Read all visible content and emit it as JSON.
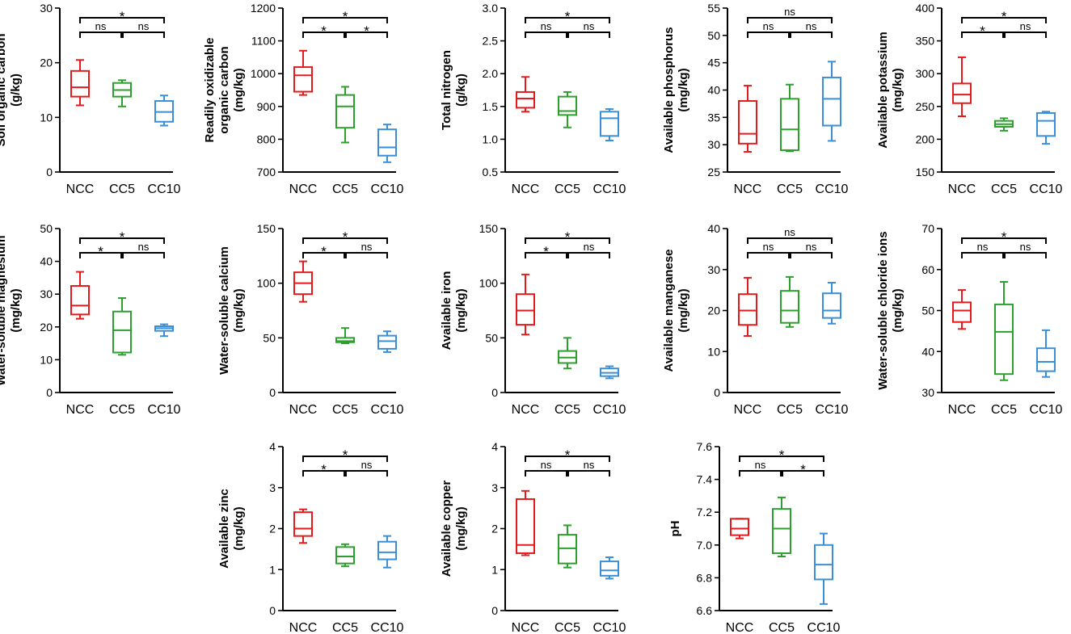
{
  "figure_title": "",
  "colors": {
    "NCC": "#e41a1c",
    "CC5": "#2ca02c",
    "CC10": "#3b8fd6",
    "axis": "#000000"
  },
  "chart_data": [
    {
      "id": "soc",
      "type": "box",
      "ylabel_lines": [
        "Soil organic carbon",
        "(g/kg)"
      ],
      "ylim": [
        0,
        30
      ],
      "yticks": [
        0,
        10,
        20,
        30
      ],
      "categories": [
        "NCC",
        "CC5",
        "CC10"
      ],
      "boxes": [
        {
          "min": 12.2,
          "q1": 13.8,
          "median": 15.5,
          "q3": 18.5,
          "max": 20.5
        },
        {
          "min": 12.0,
          "q1": 13.8,
          "median": 15.0,
          "q3": 16.3,
          "max": 16.8
        },
        {
          "min": 8.5,
          "q1": 9.2,
          "median": 11.0,
          "q3": 13.0,
          "max": 14.0
        }
      ],
      "significance": {
        "NCC_CC5": "ns",
        "CC5_CC10": "ns",
        "NCC_CC10": "*"
      }
    },
    {
      "id": "roc",
      "type": "box",
      "ylabel_lines": [
        "Readily oxidizable",
        "organic carbon",
        "(mg/kg)"
      ],
      "ylim": [
        700,
        1200
      ],
      "yticks": [
        700,
        800,
        900,
        1000,
        1100,
        1200
      ],
      "categories": [
        "NCC",
        "CC5",
        "CC10"
      ],
      "boxes": [
        {
          "min": 935,
          "q1": 945,
          "median": 995,
          "q3": 1020,
          "max": 1070
        },
        {
          "min": 790,
          "q1": 835,
          "median": 900,
          "q3": 935,
          "max": 960
        },
        {
          "min": 730,
          "q1": 750,
          "median": 775,
          "q3": 830,
          "max": 845
        }
      ],
      "significance": {
        "NCC_CC5": "*",
        "CC5_CC10": "*",
        "NCC_CC10": "*"
      }
    },
    {
      "id": "tn",
      "type": "box",
      "ylabel_lines": [
        "Total nitrogen",
        "(g/kg)"
      ],
      "ylim": [
        0.5,
        3.0
      ],
      "yticks": [
        "0.5",
        "1.0",
        "1.5",
        "2.0",
        "2.5",
        "3.0"
      ],
      "categories": [
        "NCC",
        "CC5",
        "CC10"
      ],
      "boxes": [
        {
          "min": 1.42,
          "q1": 1.48,
          "median": 1.62,
          "q3": 1.72,
          "max": 1.95
        },
        {
          "min": 1.18,
          "q1": 1.37,
          "median": 1.43,
          "q3": 1.65,
          "max": 1.72
        },
        {
          "min": 0.98,
          "q1": 1.05,
          "median": 1.32,
          "q3": 1.42,
          "max": 1.46
        }
      ],
      "significance": {
        "NCC_CC5": "ns",
        "CC5_CC10": "ns",
        "NCC_CC10": "*"
      }
    },
    {
      "id": "ap",
      "type": "box",
      "ylabel_lines": [
        "Available phosphorus",
        "(mg/kg)"
      ],
      "ylim": [
        25,
        55
      ],
      "yticks": [
        25,
        30,
        35,
        40,
        45,
        50,
        55
      ],
      "categories": [
        "NCC",
        "CC5",
        "CC10"
      ],
      "boxes": [
        {
          "min": 28.7,
          "q1": 30.2,
          "median": 32.0,
          "q3": 38.0,
          "max": 40.8
        },
        {
          "min": 28.8,
          "q1": 29.0,
          "median": 32.8,
          "q3": 38.4,
          "max": 41.0
        },
        {
          "min": 30.7,
          "q1": 33.5,
          "median": 38.4,
          "q3": 42.3,
          "max": 45.2
        }
      ],
      "significance": {
        "NCC_CC5": "ns",
        "CC5_CC10": "ns",
        "NCC_CC10": "ns"
      }
    },
    {
      "id": "ak",
      "type": "box",
      "ylabel_lines": [
        "Available potassium",
        "(mg/kg)"
      ],
      "ylim": [
        150,
        400
      ],
      "yticks": [
        150,
        200,
        250,
        300,
        350,
        400
      ],
      "categories": [
        "NCC",
        "CC5",
        "CC10"
      ],
      "boxes": [
        {
          "min": 235,
          "q1": 255,
          "median": 268,
          "q3": 285,
          "max": 325
        },
        {
          "min": 213,
          "q1": 219,
          "median": 223,
          "q3": 228,
          "max": 232
        },
        {
          "min": 193,
          "q1": 205,
          "median": 228,
          "q3": 240,
          "max": 242
        }
      ],
      "significance": {
        "NCC_CC5": "*",
        "CC5_CC10": "ns",
        "NCC_CC10": "*"
      }
    },
    {
      "id": "mg",
      "type": "box",
      "ylabel_lines": [
        "Water-soluble magnesium",
        "(mg/kg)"
      ],
      "ylim": [
        0,
        50
      ],
      "yticks": [
        0,
        10,
        20,
        30,
        40,
        50
      ],
      "categories": [
        "NCC",
        "CC5",
        "CC10"
      ],
      "boxes": [
        {
          "min": 22.5,
          "q1": 23.8,
          "median": 26.5,
          "q3": 32.5,
          "max": 36.8
        },
        {
          "min": 11.5,
          "q1": 12.2,
          "median": 19.0,
          "q3": 24.7,
          "max": 28.8
        },
        {
          "min": 17.2,
          "q1": 18.8,
          "median": 19.6,
          "q3": 20.2,
          "max": 20.8
        }
      ],
      "significance": {
        "NCC_CC5": "*",
        "CC5_CC10": "ns",
        "NCC_CC10": "*"
      }
    },
    {
      "id": "ca",
      "type": "box",
      "ylabel_lines": [
        "Water-soluble calcium",
        "(mg/kg)"
      ],
      "ylim": [
        0,
        150
      ],
      "yticks": [
        0,
        50,
        100,
        150
      ],
      "categories": [
        "NCC",
        "CC5",
        "CC10"
      ],
      "boxes": [
        {
          "min": 83,
          "q1": 90,
          "median": 100,
          "q3": 110,
          "max": 120
        },
        {
          "min": 45,
          "q1": 46,
          "median": 47,
          "q3": 50,
          "max": 59
        },
        {
          "min": 37,
          "q1": 40,
          "median": 47,
          "q3": 52,
          "max": 56
        }
      ],
      "significance": {
        "NCC_CC5": "*",
        "CC5_CC10": "ns",
        "NCC_CC10": "*"
      }
    },
    {
      "id": "fe",
      "type": "box",
      "ylabel_lines": [
        "Available iron",
        "(mg/kg)"
      ],
      "ylim": [
        0,
        150
      ],
      "yticks": [
        0,
        50,
        100,
        150
      ],
      "categories": [
        "NCC",
        "CC5",
        "CC10"
      ],
      "boxes": [
        {
          "min": 53,
          "q1": 62,
          "median": 75,
          "q3": 90,
          "max": 108
        },
        {
          "min": 22,
          "q1": 27,
          "median": 32,
          "q3": 38,
          "max": 50
        },
        {
          "min": 13,
          "q1": 15,
          "median": 18,
          "q3": 22,
          "max": 24
        }
      ],
      "significance": {
        "NCC_CC5": "*",
        "CC5_CC10": "ns",
        "NCC_CC10": "*"
      }
    },
    {
      "id": "mn",
      "type": "box",
      "ylabel_lines": [
        "Available manganese",
        "(mg/kg)"
      ],
      "ylim": [
        0,
        40
      ],
      "yticks": [
        0,
        10,
        20,
        30,
        40
      ],
      "categories": [
        "NCC",
        "CC5",
        "CC10"
      ],
      "boxes": [
        {
          "min": 13.8,
          "q1": 16.5,
          "median": 20.0,
          "q3": 24.0,
          "max": 28.0
        },
        {
          "min": 16.0,
          "q1": 17.0,
          "median": 20.0,
          "q3": 24.8,
          "max": 28.2
        },
        {
          "min": 16.8,
          "q1": 18.2,
          "median": 20.0,
          "q3": 24.2,
          "max": 26.8
        }
      ],
      "significance": {
        "NCC_CC5": "ns",
        "CC5_CC10": "ns",
        "NCC_CC10": "ns"
      }
    },
    {
      "id": "cl",
      "type": "box",
      "ylabel_lines": [
        "Water-soluble chloride ions",
        "(mg/kg)"
      ],
      "ylim": [
        30,
        70
      ],
      "yticks": [
        30,
        40,
        50,
        60,
        70
      ],
      "categories": [
        "NCC",
        "CC5",
        "CC10"
      ],
      "boxes": [
        {
          "min": 45.5,
          "q1": 47.2,
          "median": 50.0,
          "q3": 52.0,
          "max": 55.0
        },
        {
          "min": 33.0,
          "q1": 34.5,
          "median": 44.8,
          "q3": 51.5,
          "max": 57.0
        },
        {
          "min": 33.8,
          "q1": 35.2,
          "median": 37.5,
          "q3": 40.8,
          "max": 45.2
        }
      ],
      "significance": {
        "NCC_CC5": "ns",
        "CC5_CC10": "ns",
        "NCC_CC10": "*"
      }
    },
    {
      "id": "zn",
      "type": "box",
      "ylabel_lines": [
        "Available zinc",
        "(mg/kg)"
      ],
      "ylim": [
        0,
        4
      ],
      "yticks": [
        0,
        1,
        2,
        3,
        4
      ],
      "categories": [
        "NCC",
        "CC5",
        "CC10"
      ],
      "boxes": [
        {
          "min": 1.65,
          "q1": 1.82,
          "median": 2.0,
          "q3": 2.4,
          "max": 2.47
        },
        {
          "min": 1.08,
          "q1": 1.15,
          "median": 1.32,
          "q3": 1.55,
          "max": 1.62
        },
        {
          "min": 1.05,
          "q1": 1.25,
          "median": 1.42,
          "q3": 1.68,
          "max": 1.82
        }
      ],
      "significance": {
        "NCC_CC5": "*",
        "CC5_CC10": "ns",
        "NCC_CC10": "*"
      }
    },
    {
      "id": "cu",
      "type": "box",
      "ylabel_lines": [
        "Available copper",
        "(mg/kg)"
      ],
      "ylim": [
        0,
        4
      ],
      "yticks": [
        0,
        1,
        2,
        3,
        4
      ],
      "categories": [
        "NCC",
        "CC5",
        "CC10"
      ],
      "boxes": [
        {
          "min": 1.35,
          "q1": 1.4,
          "median": 1.6,
          "q3": 2.72,
          "max": 2.92
        },
        {
          "min": 1.05,
          "q1": 1.15,
          "median": 1.52,
          "q3": 1.85,
          "max": 2.08
        },
        {
          "min": 0.78,
          "q1": 0.85,
          "median": 0.98,
          "q3": 1.2,
          "max": 1.3
        }
      ],
      "significance": {
        "NCC_CC5": "ns",
        "CC5_CC10": "ns",
        "NCC_CC10": "*"
      }
    },
    {
      "id": "ph",
      "type": "box",
      "ylabel_lines": [
        "pH"
      ],
      "ylim": [
        6.6,
        7.6
      ],
      "yticks": [
        "6.6",
        "6.8",
        "7.0",
        "7.2",
        "7.4",
        "7.6"
      ],
      "categories": [
        "NCC",
        "CC5",
        "CC10"
      ],
      "boxes": [
        {
          "min": 7.04,
          "q1": 7.06,
          "median": 7.1,
          "q3": 7.16,
          "max": 7.16
        },
        {
          "min": 6.93,
          "q1": 6.95,
          "median": 7.1,
          "q3": 7.22,
          "max": 7.29
        },
        {
          "min": 6.64,
          "q1": 6.79,
          "median": 6.88,
          "q3": 7.0,
          "max": 7.07
        }
      ],
      "significance": {
        "NCC_CC5": "ns",
        "CC5_CC10": "*",
        "NCC_CC10": "*"
      }
    }
  ]
}
